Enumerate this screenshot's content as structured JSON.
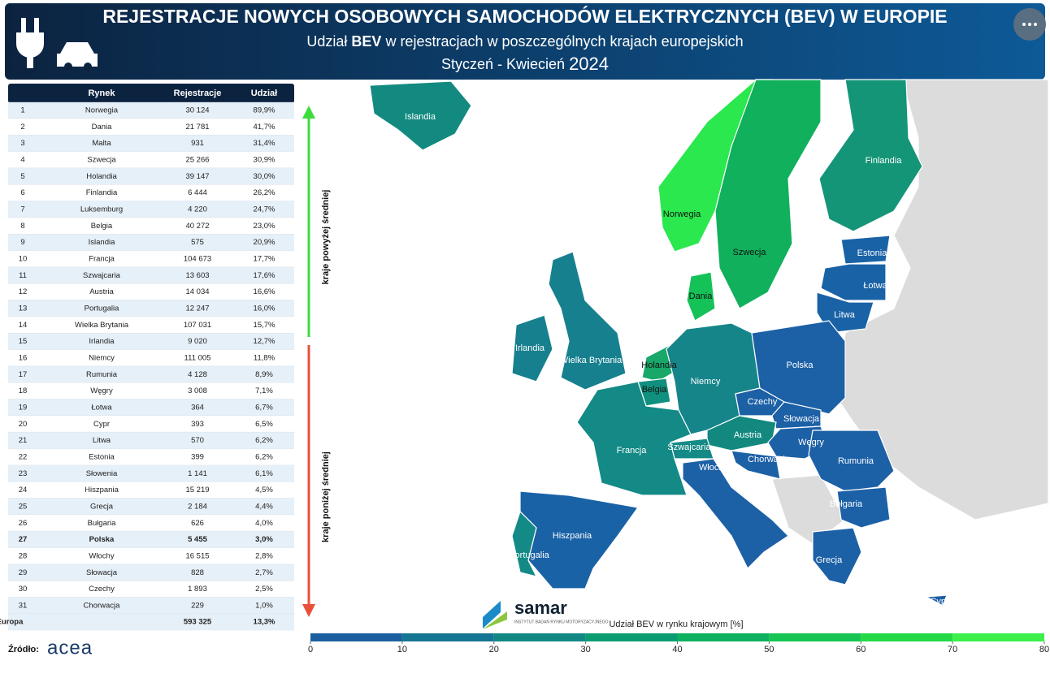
{
  "header": {
    "title": "REJESTRACJE NOWYCH OSOBOWYCH SAMOCHODÓW ELEKTRYCZNYCH (BEV) W EUROPIE",
    "subtitle": {
      "before": "Udział",
      "bold": "BEV",
      "after": "w rejestracjach w poszczególnych krajach europejskich"
    },
    "period": {
      "months": "Styczeń - Kwiecień",
      "year": "2024"
    }
  },
  "table": {
    "columns": [
      "Rynek",
      "Rejestracje",
      "Udział"
    ],
    "rows": [
      [
        "1",
        "Norwegia",
        "30 124",
        "89,9%"
      ],
      [
        "2",
        "Dania",
        "21 781",
        "41,7%"
      ],
      [
        "3",
        "Malta",
        "931",
        "31,4%"
      ],
      [
        "4",
        "Szwecja",
        "25 266",
        "30,9%"
      ],
      [
        "5",
        "Holandia",
        "39 147",
        "30,0%"
      ],
      [
        "6",
        "Finlandia",
        "6 444",
        "26,2%"
      ],
      [
        "7",
        "Luksemburg",
        "4 220",
        "24,7%"
      ],
      [
        "8",
        "Belgia",
        "40 272",
        "23,0%"
      ],
      [
        "9",
        "Islandia",
        "575",
        "20,9%"
      ],
      [
        "10",
        "Francja",
        "104 673",
        "17,7%"
      ],
      [
        "11",
        "Szwajcaria",
        "13 603",
        "17,6%"
      ],
      [
        "12",
        "Austria",
        "14 034",
        "16,6%"
      ],
      [
        "13",
        "Portugalia",
        "12 247",
        "16,0%"
      ],
      [
        "14",
        "Wielka Brytania",
        "107 031",
        "15,7%"
      ],
      [
        "15",
        "Irlandia",
        "9 020",
        "12,7%"
      ],
      [
        "16",
        "Niemcy",
        "111 005",
        "11,8%"
      ],
      [
        "17",
        "Rumunia",
        "4 128",
        "8,9%"
      ],
      [
        "18",
        "Węgry",
        "3 008",
        "7,1%"
      ],
      [
        "19",
        "Łotwa",
        "364",
        "6,7%"
      ],
      [
        "20",
        "Cypr",
        "393",
        "6,5%"
      ],
      [
        "21",
        "Litwa",
        "570",
        "6,2%"
      ],
      [
        "22",
        "Estonia",
        "399",
        "6,2%"
      ],
      [
        "23",
        "Słowenia",
        "1 141",
        "6,1%"
      ],
      [
        "24",
        "Hiszpania",
        "15 219",
        "4,5%"
      ],
      [
        "25",
        "Grecja",
        "2 184",
        "4,4%"
      ],
      [
        "26",
        "Bułgaria",
        "626",
        "4,0%"
      ],
      [
        "27",
        "Polska",
        "5 455",
        "3,0%"
      ],
      [
        "28",
        "Włochy",
        "16 515",
        "2,8%"
      ],
      [
        "29",
        "Słowacja",
        "828",
        "2,7%"
      ],
      [
        "30",
        "Czechy",
        "1 893",
        "2,5%"
      ],
      [
        "31",
        "Chorwacja",
        "229",
        "1,0%"
      ]
    ],
    "total": [
      "Europa",
      "593 325",
      "13,3%"
    ]
  },
  "arrows": {
    "above": "kraje powyżej średniej",
    "below": "kraje poniżej średniej"
  },
  "map": {
    "labels": [
      "Islandia",
      "Norwegia",
      "Szwecja",
      "Finlandia",
      "Estonia",
      "Łotwa",
      "Litwa",
      "Dania",
      "Irlandia",
      "Wielka Brytania",
      "Holandia",
      "Belgia",
      "Niemcy",
      "Polska",
      "Czechy",
      "Słowacja",
      "Austria",
      "Węgry",
      "Szwajcaria",
      "Francja",
      "Włochy",
      "Chorwacja",
      "Rumunia",
      "Bułgaria",
      "Hiszpania",
      "Portugalia",
      "Grecja",
      "Cypr"
    ]
  },
  "legend": {
    "title": "Udział BEV w rynku krajowym [%]",
    "range": [
      0,
      80
    ],
    "ticks": [
      0,
      10,
      20,
      30,
      40,
      50,
      60,
      70,
      80
    ]
  },
  "source": {
    "label": "Źródło:",
    "name": "acea"
  },
  "logo": {
    "name": "samar",
    "tagline": "INSTYTUT BADAŃ RYNKU MOTORYZACYJNEGO"
  }
}
